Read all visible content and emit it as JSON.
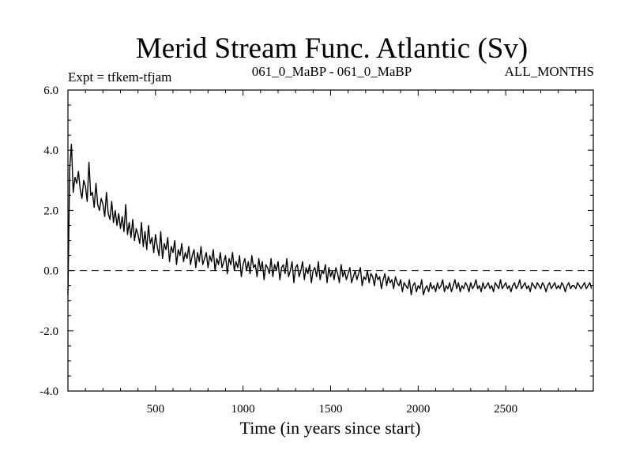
{
  "chart_data": {
    "type": "line",
    "title": "Merid Stream Func. Atlantic (Sv)",
    "left_note": "Expt = tfkem-tfjam",
    "center_note": "061_0_MaBP - 061_0_MaBP",
    "right_note": "ALL_MONTHS",
    "xlabel": "Time (in years since start)",
    "ylabel": "",
    "xlim": [
      0,
      3000
    ],
    "ylim": [
      -4.0,
      6.0
    ],
    "x_ticks": [
      500,
      1000,
      1500,
      2000,
      2500
    ],
    "x_tick_labels": [
      "500",
      "1000",
      "1500",
      "2000",
      "2500"
    ],
    "y_ticks": [
      -4.0,
      -2.0,
      0.0,
      2.0,
      4.0,
      6.0
    ],
    "y_tick_labels": [
      "-4.0",
      "-2.0",
      "0.0",
      "2.0",
      "4.0",
      "6.0"
    ],
    "reference_line": {
      "y": 0.0,
      "style": "dashed"
    },
    "series": [
      {
        "color": "#000000",
        "x_start": 0,
        "x_step": 10,
        "values": [
          -0.8,
          3.4,
          4.2,
          2.6,
          3.1,
          2.9,
          3.3,
          2.7,
          2.4,
          3.0,
          2.8,
          2.3,
          3.6,
          2.5,
          2.6,
          2.1,
          2.9,
          2.2,
          2.0,
          2.4,
          2.2,
          1.8,
          2.6,
          1.9,
          1.7,
          2.3,
          1.6,
          2.0,
          1.5,
          1.9,
          1.4,
          1.8,
          1.3,
          2.2,
          1.2,
          1.6,
          1.1,
          1.7,
          1.0,
          1.4,
          1.2,
          0.9,
          1.6,
          0.8,
          1.3,
          0.7,
          1.5,
          0.9,
          1.1,
          0.6,
          1.2,
          0.8,
          0.5,
          1.3,
          0.4,
          0.9,
          0.7,
          1.1,
          0.3,
          0.8,
          0.6,
          1.0,
          0.2,
          0.7,
          0.5,
          0.9,
          0.3,
          0.6,
          0.4,
          0.8,
          0.2,
          0.5,
          0.7,
          0.1,
          0.6,
          0.3,
          0.8,
          0.2,
          0.4,
          0.6,
          0.1,
          0.5,
          0.3,
          0.7,
          0.0,
          0.4,
          0.2,
          0.6,
          0.1,
          0.3,
          0.5,
          -0.1,
          0.4,
          0.2,
          0.6,
          0.0,
          0.3,
          0.1,
          0.5,
          -0.2,
          0.2,
          0.4,
          0.0,
          0.3,
          -0.1,
          0.5,
          0.1,
          0.2,
          -0.2,
          0.4,
          0.0,
          0.3,
          -0.3,
          0.2,
          0.1,
          -0.1,
          0.4,
          -0.2,
          0.2,
          0.0,
          0.3,
          -0.3,
          0.1,
          0.2,
          -0.1,
          0.4,
          -0.2,
          0.0,
          0.3,
          -0.4,
          0.1,
          0.2,
          -0.2,
          0.0,
          0.3,
          -0.3,
          0.1,
          -0.1,
          0.2,
          -0.4,
          0.0,
          0.1,
          -0.2,
          0.3,
          -0.3,
          0.0,
          -0.1,
          0.2,
          -0.4,
          0.1,
          -0.2,
          0.0,
          -0.3,
          0.1,
          -0.1,
          -0.4,
          0.2,
          -0.2,
          0.0,
          -0.3,
          -0.1,
          0.1,
          -0.4,
          -0.2,
          0.0,
          -0.3,
          -0.1,
          0.1,
          -0.5,
          -0.2,
          -0.3,
          0.0,
          -0.4,
          -0.1,
          -0.2,
          -0.5,
          -0.1,
          -0.3,
          -0.2,
          -0.6,
          -0.3,
          -0.1,
          -0.5,
          -0.2,
          -0.4,
          -0.3,
          -0.6,
          -0.2,
          -0.4,
          -0.5,
          -0.3,
          -0.7,
          -0.4,
          -0.5,
          -0.6,
          -0.3,
          -0.8,
          -0.5,
          -0.4,
          -0.7,
          -0.5,
          -0.6,
          -0.3,
          -0.8,
          -0.6,
          -0.5,
          -0.7,
          -0.4,
          -0.6,
          -0.5,
          -0.7,
          -0.4,
          -0.6,
          -0.5,
          -0.3,
          -0.7,
          -0.5,
          -0.6,
          -0.4,
          -0.7,
          -0.5,
          -0.3,
          -0.6,
          -0.4,
          -0.7,
          -0.5,
          -0.6,
          -0.4,
          -0.5,
          -0.7,
          -0.4,
          -0.6,
          -0.5,
          -0.3,
          -0.6,
          -0.5,
          -0.7,
          -0.4,
          -0.6,
          -0.5,
          -0.4,
          -0.6,
          -0.5,
          -0.7,
          -0.4,
          -0.5,
          -0.6,
          -0.3,
          -0.6,
          -0.5,
          -0.4,
          -0.6,
          -0.5,
          -0.7,
          -0.5,
          -0.4,
          -0.6,
          -0.5,
          -0.3,
          -0.6,
          -0.5,
          -0.4,
          -0.6,
          -0.5,
          -0.7,
          -0.4,
          -0.5,
          -0.6,
          -0.4,
          -0.5,
          -0.6,
          -0.4,
          -0.5,
          -0.7,
          -0.5,
          -0.4,
          -0.6,
          -0.5,
          -0.4,
          -0.6,
          -0.5,
          -0.6,
          -0.4,
          -0.5,
          -0.7,
          -0.5,
          -0.4,
          -0.6,
          -0.5,
          -0.5,
          -0.6,
          -0.4,
          -0.5,
          -0.6,
          -0.5,
          -0.4,
          -0.6,
          -0.5,
          -0.4,
          -0.6
        ]
      }
    ]
  }
}
